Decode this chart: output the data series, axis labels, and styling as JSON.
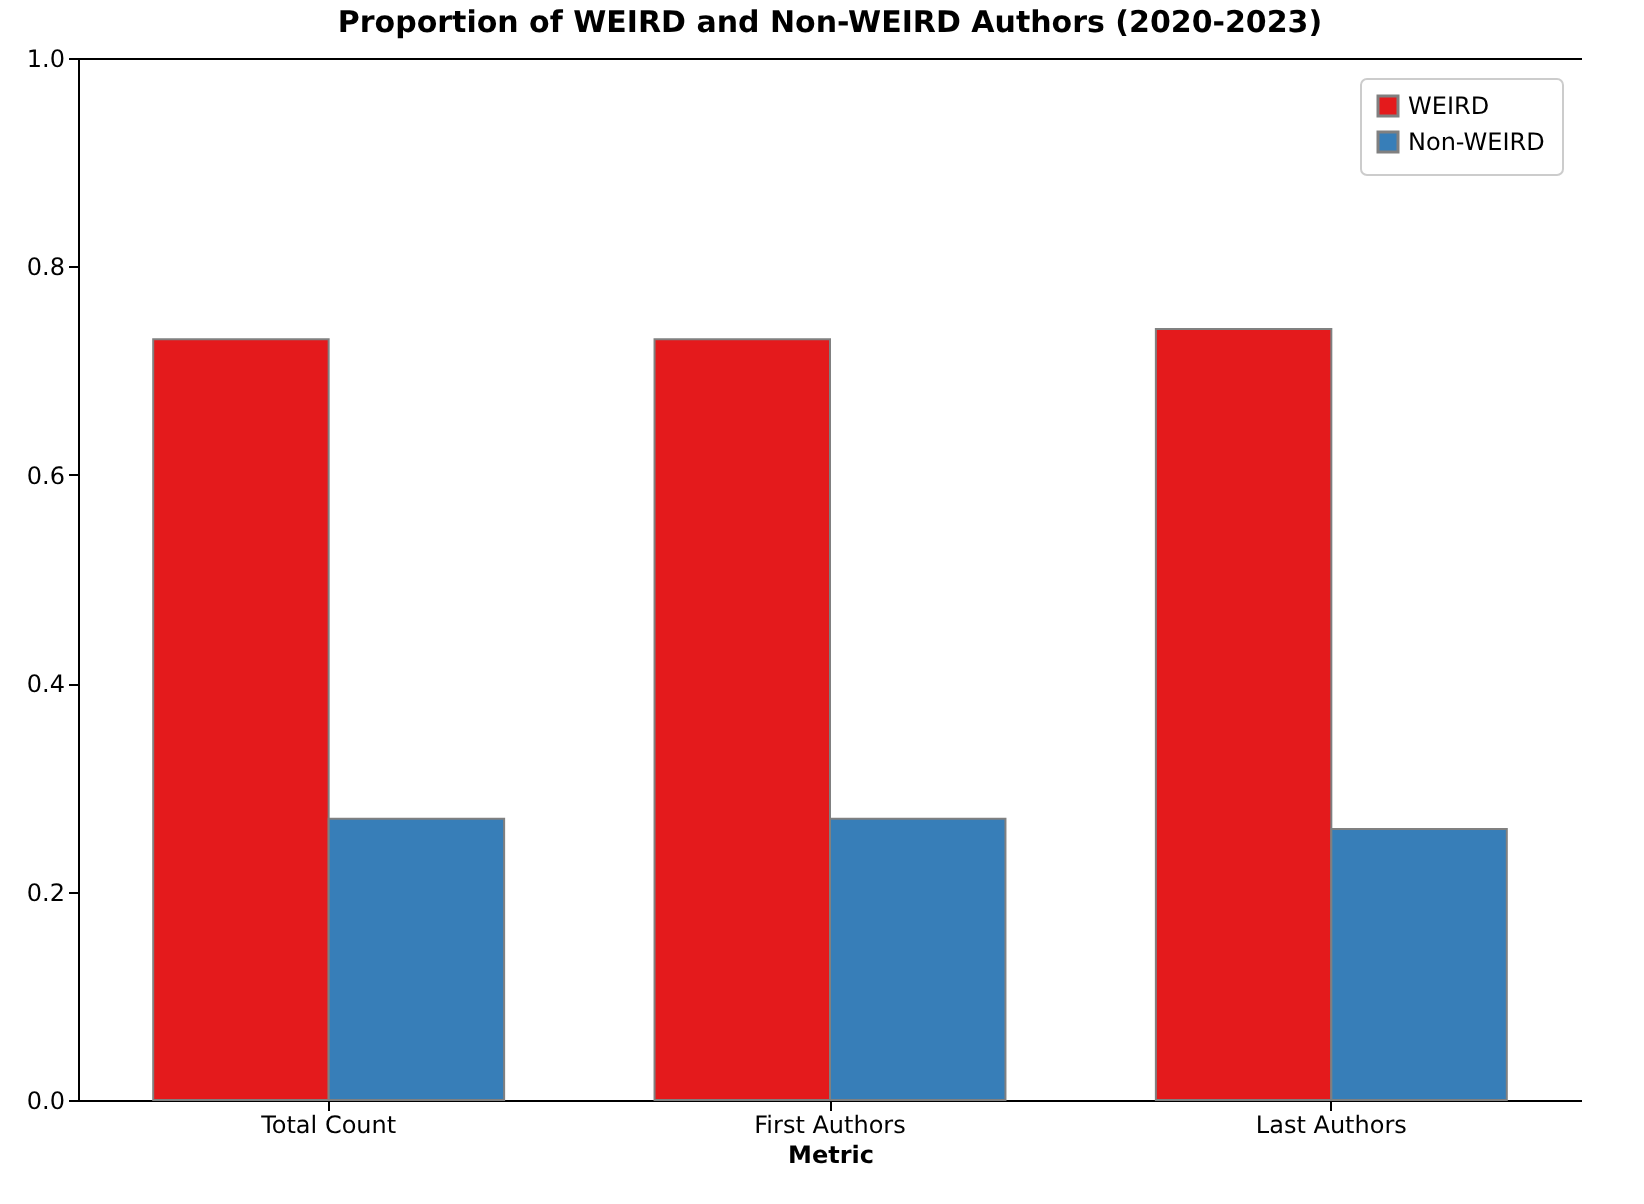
{
  "chart_data": {
    "type": "bar",
    "title": "Proportion of WEIRD and Non-WEIRD Authors (2020-2023)",
    "xlabel": "Metric",
    "categories": [
      "Total Count",
      "First Authors",
      "Last Authors"
    ],
    "series": [
      {
        "name": "WEIRD",
        "color": "#e41a1c",
        "values": [
          0.73,
          0.73,
          0.74
        ]
      },
      {
        "name": "Non-WEIRD",
        "color": "#377eb8",
        "values": [
          0.27,
          0.27,
          0.26
        ]
      }
    ],
    "ylim": [
      0,
      1.0
    ],
    "yticks": [
      {
        "value": 0,
        "label": "0.0"
      },
      0.2,
      0.4,
      0.6,
      0.8,
      {
        "value": 1,
        "label": "1.0"
      }
    ],
    "grid": false,
    "legend": "top right"
  }
}
